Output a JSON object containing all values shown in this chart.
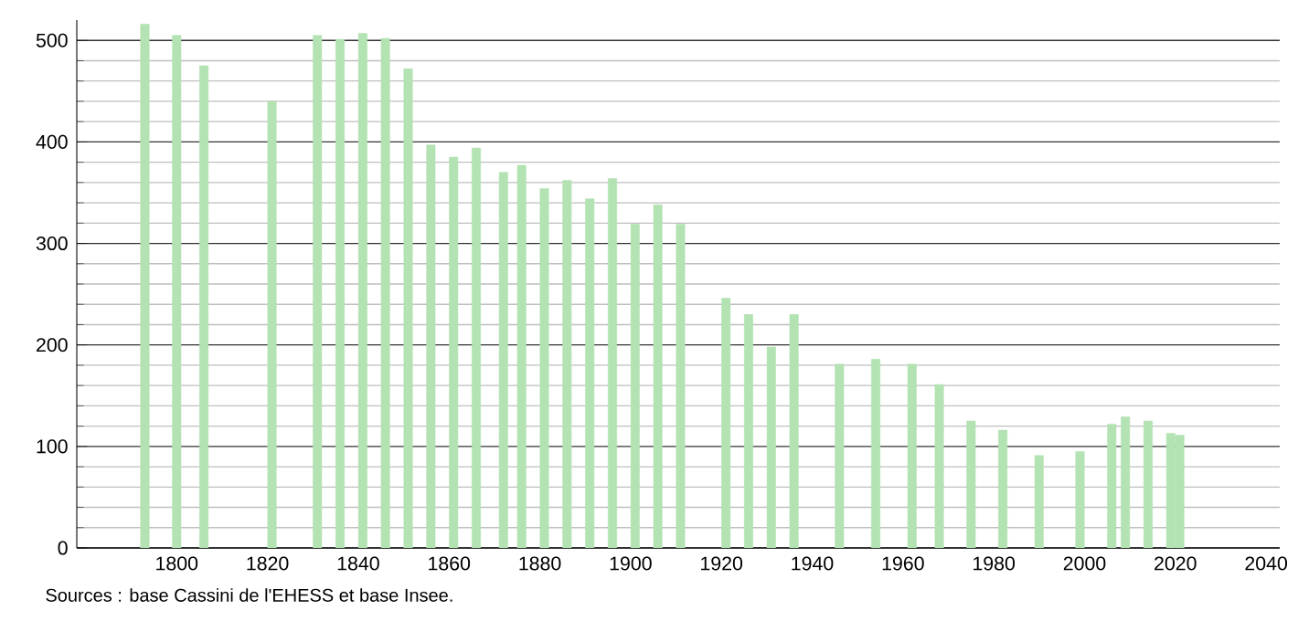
{
  "chart_data": {
    "type": "bar",
    "x": [
      1793,
      1800,
      1806,
      1821,
      1831,
      1836,
      1841,
      1846,
      1851,
      1856,
      1861,
      1866,
      1872,
      1876,
      1881,
      1886,
      1891,
      1896,
      1901,
      1906,
      1911,
      1921,
      1926,
      1931,
      1936,
      1946,
      1954,
      1962,
      1968,
      1975,
      1982,
      1990,
      1999,
      2006,
      2009,
      2014,
      2019,
      2021
    ],
    "values": [
      516,
      505,
      475,
      440,
      505,
      501,
      507,
      502,
      472,
      397,
      385,
      394,
      370,
      377,
      354,
      362,
      344,
      364,
      319,
      338,
      319,
      246,
      230,
      198,
      230,
      181,
      186,
      181,
      161,
      125,
      116,
      91,
      95,
      122,
      129,
      125,
      113,
      111
    ],
    "color": "#b3e2b3",
    "xlim": [
      1778,
      2043
    ],
    "xticks": [
      1800,
      1820,
      1840,
      1860,
      1880,
      1900,
      1920,
      1940,
      1960,
      1980,
      2000,
      2020,
      2040
    ],
    "ylim": [
      0,
      520
    ],
    "yticks": [
      0,
      100,
      200,
      300,
      400,
      500
    ],
    "grid": "y",
    "annotations": [
      "Sources : base Cassini de l'EHESS et base Insee."
    ]
  }
}
